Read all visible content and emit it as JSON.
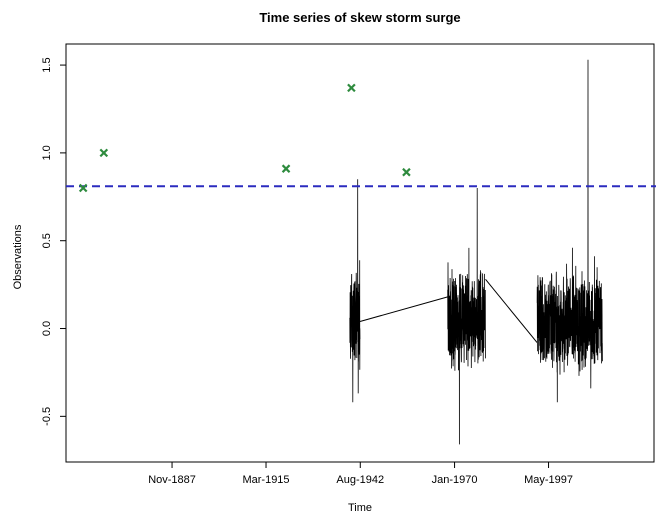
{
  "chart_data": {
    "type": "line",
    "title": "Time series of skew storm surge",
    "xlabel": "Time",
    "ylabel": "Observations",
    "xlim": [
      1857,
      2028
    ],
    "ylim": [
      -0.76,
      1.62
    ],
    "x_ticks": [
      {
        "label": "Nov-1887",
        "value": 1887.84
      },
      {
        "label": "Mar-1915",
        "value": 1915.17
      },
      {
        "label": "Aug-1942",
        "value": 1942.58
      },
      {
        "label": "Jan-1970",
        "value": 1970.0
      },
      {
        "label": "May-1997",
        "value": 1997.33
      }
    ],
    "y_ticks": [
      -0.5,
      0.0,
      0.5,
      1.0,
      1.5
    ],
    "grid": false,
    "threshold": {
      "value": 0.81,
      "color": "#2b2bbf",
      "style": "dashed"
    },
    "series": [
      {
        "kind": "line",
        "color": "#000000",
        "segments": [
          {
            "start": 1939.5,
            "end": 1942.5,
            "y_min": -0.42,
            "y_max": 0.85,
            "center": 0.04,
            "spread": 0.32
          },
          {
            "start": 1968.0,
            "end": 1979.0,
            "y_min": -0.66,
            "y_max": 0.8,
            "center": 0.05,
            "spread": 0.3
          },
          {
            "start": 1994.0,
            "end": 2013.0,
            "y_min": -0.42,
            "y_max": 1.53,
            "center": 0.04,
            "spread": 0.3
          }
        ],
        "connectors": [
          {
            "x": [
              1942.5,
              1968.0
            ],
            "y": [
              0.04,
              0.18
            ]
          },
          {
            "x": [
              1979.0,
              1994.0
            ],
            "y": [
              0.28,
              -0.08
            ]
          }
        ]
      },
      {
        "kind": "points",
        "marker": "x",
        "color": "#2e8b3e",
        "x": [
          1862,
          1868,
          1921,
          1940,
          1956
        ],
        "y": [
          0.8,
          1.0,
          0.91,
          1.37,
          0.89
        ]
      }
    ]
  }
}
